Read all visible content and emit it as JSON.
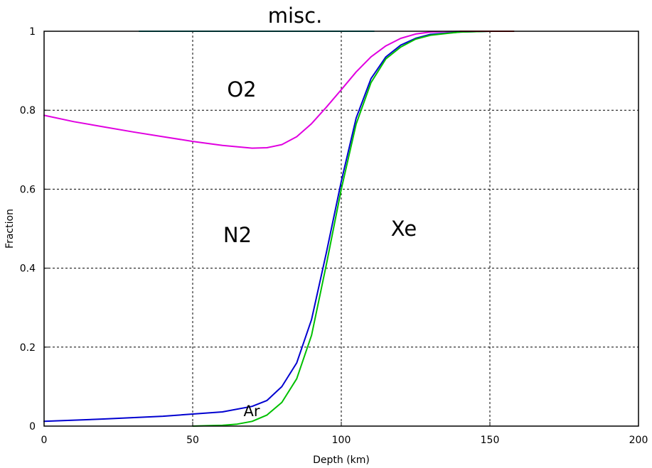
{
  "chart_data": {
    "type": "area",
    "xlabel": "Depth (km)",
    "ylabel": "Fraction",
    "xlim": [
      0,
      200
    ],
    "ylim": [
      0,
      1
    ],
    "xticks": [
      0,
      50,
      100,
      150,
      200
    ],
    "yticks": [
      0,
      0.2,
      0.4,
      0.6,
      0.8,
      1
    ],
    "xtick_labels": [
      "0",
      "50",
      "100",
      "150",
      "200"
    ],
    "ytick_labels": [
      "0",
      "0.2",
      "0.4",
      "0.6",
      "0.8",
      "1"
    ],
    "grid": true,
    "region_labels": {
      "misc": "misc.",
      "o2": "O2",
      "n2": "N2",
      "xe": "Xe",
      "ar": "Ar"
    },
    "series": [
      {
        "color": "#e000e0",
        "x": [
          0,
          10,
          20,
          30,
          40,
          50,
          60,
          70,
          75,
          80,
          85,
          90,
          95,
          100,
          105,
          110,
          115,
          120,
          125,
          130,
          140,
          150,
          158
        ],
        "y": [
          0.787,
          0.771,
          0.758,
          0.745,
          0.733,
          0.721,
          0.711,
          0.704,
          0.705,
          0.713,
          0.733,
          0.766,
          0.808,
          0.852,
          0.897,
          0.935,
          0.963,
          0.982,
          0.993,
          0.998,
          1.0,
          1.0,
          1.0
        ]
      },
      {
        "color": "#0000d0",
        "x": [
          0,
          20,
          40,
          60,
          70,
          75,
          80,
          85,
          90,
          95,
          100,
          105,
          110,
          115,
          120,
          125,
          130,
          140,
          150,
          158
        ],
        "y": [
          0.012,
          0.018,
          0.025,
          0.036,
          0.05,
          0.065,
          0.1,
          0.16,
          0.27,
          0.44,
          0.62,
          0.78,
          0.88,
          0.935,
          0.965,
          0.982,
          0.992,
          0.998,
          1.0,
          1.0
        ]
      },
      {
        "color": "#00c000",
        "x": [
          50,
          55,
          60,
          65,
          70,
          75,
          80,
          85,
          90,
          95,
          100,
          105,
          110,
          115,
          120,
          125,
          130,
          140,
          150,
          158
        ],
        "y": [
          0.0,
          0.001,
          0.002,
          0.005,
          0.012,
          0.028,
          0.06,
          0.12,
          0.23,
          0.41,
          0.6,
          0.765,
          0.87,
          0.93,
          0.96,
          0.98,
          0.99,
          0.998,
          1.0,
          1.0
        ]
      },
      {
        "color": "#00c0c0",
        "x": [
          32,
          60,
          90,
          111
        ],
        "y": [
          1.0,
          1.0,
          1.0,
          1.0
        ]
      },
      {
        "color": "#c00000",
        "x": [
          140,
          150,
          158
        ],
        "y": [
          1.0,
          1.0,
          1.0
        ]
      }
    ]
  }
}
